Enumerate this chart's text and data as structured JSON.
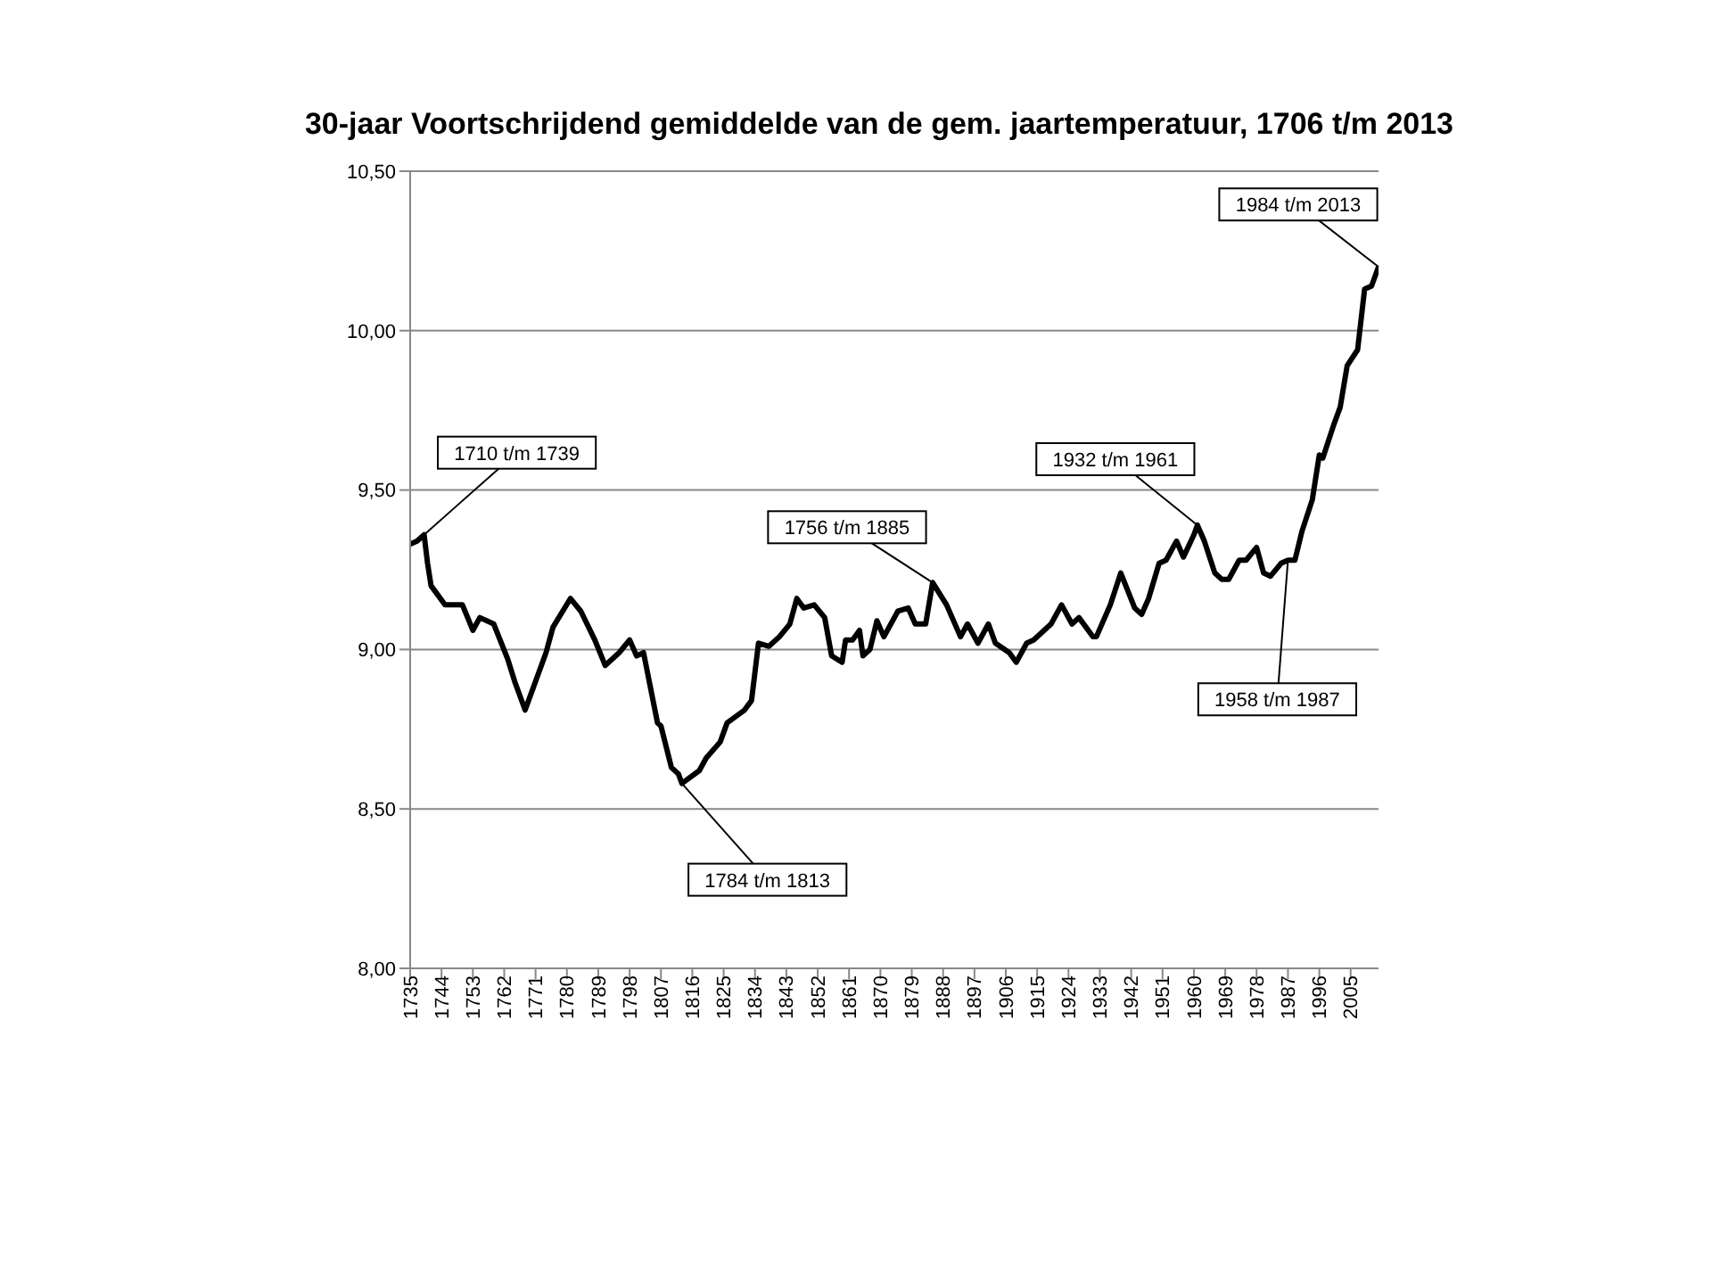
{
  "chart_data": {
    "type": "line",
    "title": "30-jaar Voortschrijdend gemiddelde van de gem. jaartemperatuur, 1706 t/m 2013",
    "x": [
      1735,
      1737,
      1739,
      1740,
      1741,
      1745,
      1747,
      1750,
      1753,
      1755,
      1759,
      1763,
      1765,
      1768,
      1770,
      1774,
      1776,
      1781,
      1784,
      1788,
      1791,
      1795,
      1798,
      1800,
      1802,
      1804,
      1806,
      1807,
      1810,
      1812,
      1813,
      1818,
      1820,
      1824,
      1826,
      1831,
      1833,
      1835,
      1838,
      1841,
      1844,
      1846,
      1848,
      1851,
      1854,
      1856,
      1859,
      1860,
      1862,
      1864,
      1865,
      1867,
      1869,
      1871,
      1875,
      1878,
      1880,
      1883,
      1885,
      1889,
      1893,
      1895,
      1898,
      1901,
      1903,
      1907,
      1909,
      1912,
      1914,
      1919,
      1922,
      1925,
      1927,
      1931,
      1932,
      1936,
      1939,
      1943,
      1945,
      1947,
      1950,
      1952,
      1955,
      1957,
      1960,
      1961,
      1963,
      1966,
      1968,
      1970,
      1973,
      1975,
      1978,
      1980,
      1982,
      1985,
      1987,
      1989,
      1991,
      1994,
      1996,
      1997,
      2000,
      2002,
      2004,
      2007,
      2009,
      2011,
      2013
    ],
    "series": [
      {
        "color": "#000000",
        "values": [
          9.33,
          9.34,
          9.36,
          9.27,
          9.2,
          9.14,
          9.14,
          9.14,
          9.06,
          9.1,
          9.08,
          8.97,
          8.9,
          8.81,
          8.87,
          8.99,
          9.07,
          9.16,
          9.12,
          9.03,
          8.95,
          8.99,
          9.03,
          8.98,
          8.99,
          8.88,
          8.77,
          8.76,
          8.63,
          8.61,
          8.58,
          8.62,
          8.66,
          8.71,
          8.77,
          8.81,
          8.84,
          9.02,
          9.01,
          9.04,
          9.08,
          9.16,
          9.13,
          9.14,
          9.1,
          8.98,
          8.96,
          9.03,
          9.03,
          9.06,
          8.98,
          9.0,
          9.09,
          9.04,
          9.12,
          9.13,
          9.08,
          9.08,
          9.21,
          9.14,
          9.04,
          9.08,
          9.02,
          9.08,
          9.02,
          8.99,
          8.96,
          9.02,
          9.03,
          9.08,
          9.14,
          9.08,
          9.1,
          9.04,
          9.04,
          9.14,
          9.24,
          9.13,
          9.11,
          9.16,
          9.27,
          9.28,
          9.34,
          9.29,
          9.36,
          9.39,
          9.34,
          9.24,
          9.22,
          9.22,
          9.28,
          9.28,
          9.32,
          9.24,
          9.23,
          9.27,
          9.28,
          9.28,
          9.37,
          9.47,
          9.61,
          9.6,
          9.7,
          9.76,
          9.89,
          9.94,
          10.13,
          10.14,
          10.2
        ]
      }
    ],
    "xlim": [
      1735,
      2013
    ],
    "xticks": [
      1735,
      1744,
      1753,
      1762,
      1771,
      1780,
      1789,
      1798,
      1807,
      1816,
      1825,
      1834,
      1843,
      1852,
      1861,
      1870,
      1879,
      1888,
      1897,
      1906,
      1915,
      1924,
      1933,
      1942,
      1951,
      1960,
      1969,
      1978,
      1987,
      1996,
      2005
    ],
    "ylim": [
      8,
      10.5
    ],
    "yticks": [
      {
        "value": 8,
        "label": "8,00"
      },
      {
        "value": 8.5,
        "label": "8,50"
      },
      {
        "value": 9,
        "label": "9,00"
      },
      {
        "value": 9.5,
        "label": "9,50"
      },
      {
        "value": 10,
        "label": "10,00"
      },
      {
        "value": 10.5,
        "label": "10,50"
      }
    ],
    "grid": "y",
    "annotations": [
      {
        "text": "1710 t/m 1739",
        "x": 1739,
        "y": 9.36
      },
      {
        "text": "1784 t/m 1813",
        "x": 1813,
        "y": 8.58
      },
      {
        "text": "1756 t/m 1885",
        "x": 1885,
        "y": 9.21
      },
      {
        "text": "1932 t/m 1961",
        "x": 1961,
        "y": 9.39
      },
      {
        "text": "1958 t/m 1987",
        "x": 1987,
        "y": 9.28
      },
      {
        "text": "1984 t/m 2013",
        "x": 2013,
        "y": 10.2
      }
    ]
  }
}
